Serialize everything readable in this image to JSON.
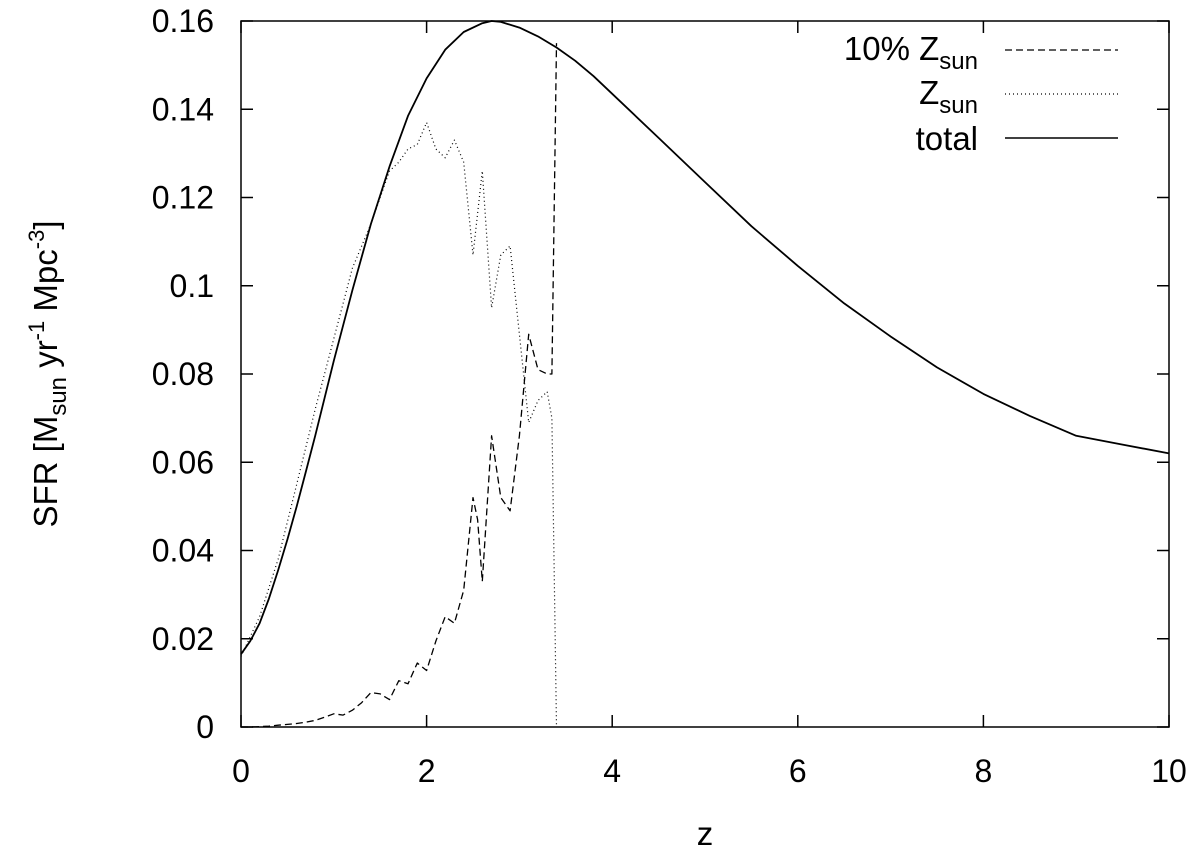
{
  "chart_data": {
    "type": "line",
    "xlabel": "z",
    "ylabel": {
      "prefix": "SFR [M",
      "sub": "sun",
      "mid1": " yr",
      "sup1": "-1",
      "mid2": " Mpc",
      "sup2": "-3",
      "suffix": "]"
    },
    "xlim": [
      0,
      10
    ],
    "ylim": [
      0,
      0.16
    ],
    "xticks": [
      "0",
      "2",
      "4",
      "6",
      "8",
      "10"
    ],
    "yticks": [
      "0",
      "0.02",
      "0.04",
      "0.06",
      "0.08",
      "0.1",
      "0.12",
      "0.14",
      "0.16"
    ],
    "grid": false,
    "legend_position": "top-right",
    "series": [
      {
        "name": "10% Z_sun",
        "legend": {
          "main": "10% Z",
          "sub": "sun"
        },
        "style": "dashed",
        "x": [
          0.0,
          0.1,
          0.2,
          0.3,
          0.4,
          0.5,
          0.6,
          0.7,
          0.8,
          0.9,
          1.0,
          1.1,
          1.2,
          1.3,
          1.4,
          1.5,
          1.6,
          1.7,
          1.8,
          1.9,
          2.0,
          2.1,
          2.2,
          2.3,
          2.4,
          2.5,
          2.55,
          2.6,
          2.7,
          2.8,
          2.9,
          3.0,
          3.1,
          3.2,
          3.3,
          3.35,
          3.4
        ],
        "y": [
          0.0,
          0.0,
          0.0001,
          0.0002,
          0.0004,
          0.0006,
          0.0008,
          0.0011,
          0.0015,
          0.0022,
          0.003,
          0.0027,
          0.0038,
          0.0055,
          0.0078,
          0.0075,
          0.0062,
          0.0105,
          0.0098,
          0.0145,
          0.0128,
          0.0195,
          0.025,
          0.0235,
          0.031,
          0.052,
          0.047,
          0.033,
          0.066,
          0.052,
          0.049,
          0.066,
          0.089,
          0.081,
          0.08,
          0.08,
          0.155
        ]
      },
      {
        "name": "Z_sun",
        "legend": {
          "main": "Z",
          "sub": "sun"
        },
        "style": "dotted",
        "x": [
          0.0,
          0.2,
          0.4,
          0.6,
          0.8,
          1.0,
          1.2,
          1.4,
          1.5,
          1.6,
          1.7,
          1.8,
          1.9,
          2.0,
          2.1,
          2.2,
          2.3,
          2.4,
          2.5,
          2.6,
          2.7,
          2.8,
          2.9,
          3.0,
          3.1,
          3.2,
          3.3,
          3.35,
          3.4
        ],
        "y": [
          0.016,
          0.025,
          0.038,
          0.055,
          0.072,
          0.088,
          0.104,
          0.114,
          0.12,
          0.126,
          0.128,
          0.131,
          0.132,
          0.137,
          0.131,
          0.129,
          0.133,
          0.128,
          0.107,
          0.126,
          0.095,
          0.107,
          0.109,
          0.089,
          0.069,
          0.074,
          0.076,
          0.07,
          0.0
        ]
      },
      {
        "name": "total",
        "legend": {
          "main": "total",
          "sub": ""
        },
        "style": "solid",
        "x": [
          0.0,
          0.1,
          0.2,
          0.3,
          0.4,
          0.5,
          0.6,
          0.7,
          0.8,
          0.9,
          1.0,
          1.2,
          1.4,
          1.6,
          1.8,
          2.0,
          2.2,
          2.4,
          2.6,
          2.7,
          2.8,
          3.0,
          3.2,
          3.4,
          3.6,
          3.8,
          4.0,
          4.5,
          5.0,
          5.5,
          6.0,
          6.5,
          7.0,
          7.5,
          8.0,
          8.5,
          9.0,
          9.5,
          10.0
        ],
        "y": [
          0.0165,
          0.0195,
          0.0235,
          0.029,
          0.0355,
          0.0425,
          0.05,
          0.058,
          0.066,
          0.0745,
          0.083,
          0.099,
          0.114,
          0.127,
          0.1385,
          0.147,
          0.1535,
          0.1575,
          0.1595,
          0.16,
          0.1598,
          0.1585,
          0.1565,
          0.154,
          0.151,
          0.1475,
          0.1435,
          0.1335,
          0.1235,
          0.1135,
          0.1045,
          0.096,
          0.0885,
          0.0815,
          0.0755,
          0.0705,
          0.066,
          0.064,
          0.062
        ]
      }
    ]
  }
}
